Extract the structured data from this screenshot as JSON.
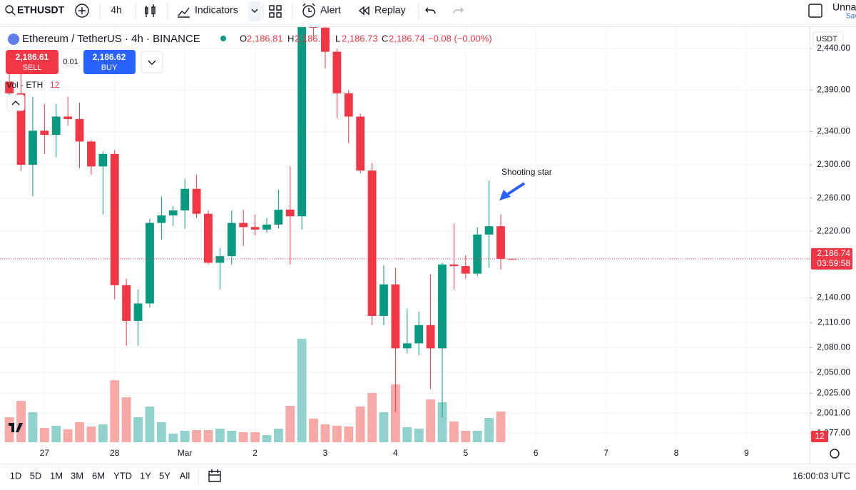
{
  "toolbar": {
    "symbol": "ETHUSDT",
    "interval": "4h",
    "indicators": "Indicators",
    "alert": "Alert",
    "replay": "Replay",
    "layout_name": "Unnam",
    "save": "Sav"
  },
  "legend": {
    "title": "Ethereum / TetherUS · 4h · BINANCE",
    "o_label": "O",
    "o": "2,186.81",
    "h_label": "H",
    "h": "2,186.81",
    "l_label": "L",
    "l": "2,186.73",
    "c_label": "C",
    "c": "2,186.74",
    "change": "−0.08 (−0.00%)"
  },
  "trade": {
    "sell_price": "2,186.61",
    "sell": "SELL",
    "spread": "0.01",
    "buy_price": "2,186.62",
    "buy": "BUY"
  },
  "volume_legend": {
    "label": "Vol · ETH",
    "value": "12"
  },
  "price_scale": {
    "currency": "USDT",
    "last_price": "2,186.74",
    "countdown": "03:59:58",
    "volume_badge": "12"
  },
  "timeframes": [
    "1D",
    "5D",
    "1M",
    "3M",
    "6M",
    "YTD",
    "1Y",
    "5Y",
    "All"
  ],
  "clock": "16:00:03 UTC",
  "chart_data": {
    "type": "candlestick",
    "annotation": "Shooting star",
    "open": [
      2400,
      2386,
      2300,
      2341,
      2336,
      2358,
      2355,
      2328,
      2298,
      2313,
      2155,
      2112,
      2133,
      2230,
      2239,
      2245,
      2271,
      2241,
      2182,
      2190,
      2230,
      2225,
      2222,
      2228,
      2246,
      2238,
      2470,
      2465,
      2436,
      2386,
      2358,
      2293,
      2118,
      2156,
      2079,
      2085,
      2107,
      2079,
      2180,
      2178,
      2169,
      2216,
      2226,
      2186.81
    ],
    "high": [
      2415,
      2412,
      2382,
      2373,
      2373,
      2382,
      2375,
      2330,
      2316,
      2318,
      2163,
      2150,
      2235,
      2262,
      2250,
      2283,
      2288,
      2245,
      2200,
      2245,
      2246,
      2240,
      2236,
      2270,
      2298,
      2490,
      2495,
      2480,
      2440,
      2390,
      2362,
      2302,
      2179,
      2176,
      2127,
      2123,
      2168,
      2182,
      2229,
      2191,
      2225,
      2281,
      2240,
      2186.81
    ],
    "low": [
      2380,
      2292,
      2262,
      2313,
      2309,
      2347,
      2296,
      2288,
      2240,
      2138,
      2082,
      2082,
      2128,
      2210,
      2226,
      2223,
      2236,
      2180,
      2150,
      2180,
      2202,
      2215,
      2218,
      2223,
      2180,
      2222,
      2450,
      2416,
      2356,
      2326,
      2290,
      2107,
      2107,
      2002,
      2073,
      2071,
      2030,
      1996,
      2150,
      2163,
      2166,
      2176,
      2174,
      2186.73
    ],
    "close": [
      2386,
      2300,
      2341,
      2336,
      2358,
      2355,
      2328,
      2298,
      2313,
      2155,
      2112,
      2133,
      2230,
      2239,
      2245,
      2271,
      2241,
      2182,
      2190,
      2230,
      2225,
      2222,
      2228,
      2246,
      2238,
      2470,
      2465,
      2436,
      2386,
      2358,
      2293,
      2118,
      2156,
      2079,
      2085,
      2107,
      2079,
      2180,
      2178,
      2169,
      2216,
      2226,
      2186.81,
      2186.74
    ],
    "volume": [
      35000,
      58000,
      42000,
      20000,
      23000,
      18000,
      28000,
      22000,
      25000,
      87000,
      63000,
      35000,
      50000,
      28000,
      12000,
      16000,
      17000,
      17000,
      19000,
      16000,
      14000,
      14000,
      10000,
      19000,
      51000,
      145000,
      33000,
      25000,
      23000,
      22000,
      50000,
      69000,
      42000,
      81000,
      21000,
      19000,
      60000,
      56000,
      29000,
      16000,
      16000,
      34000,
      43000,
      12
    ],
    "up_color": "#089981",
    "down_color": "#f23645",
    "volume_up_color": "#92d2cc",
    "volume_down_color": "#f7a9a7",
    "xlim": [
      -0.8,
      68.4
    ],
    "xticks": [
      {
        "value": 3,
        "label": "27"
      },
      {
        "value": 9,
        "label": "28"
      },
      {
        "value": 15,
        "label": "Mar"
      },
      {
        "value": 21,
        "label": "2"
      },
      {
        "value": 27,
        "label": "3"
      },
      {
        "value": 33,
        "label": "4"
      },
      {
        "value": 39,
        "label": "5"
      },
      {
        "value": 45,
        "label": "6"
      },
      {
        "value": 51,
        "label": "7"
      },
      {
        "value": 57,
        "label": "8"
      },
      {
        "value": 63,
        "label": "9"
      }
    ],
    "ylim": [
      1966,
      2464
    ],
    "yticks": [
      {
        "value": 2440,
        "label": "2,440.00"
      },
      {
        "value": 2390,
        "label": "2,390.00"
      },
      {
        "value": 2340,
        "label": "2,340.00"
      },
      {
        "value": 2300,
        "label": "2,300.00"
      },
      {
        "value": 2260,
        "label": "2,260.00"
      },
      {
        "value": 2220,
        "label": "2,220.00"
      },
      {
        "value": 2140,
        "label": "2,140.00"
      },
      {
        "value": 2110,
        "label": "2,110.00"
      },
      {
        "value": 2080,
        "label": "2,080.00"
      },
      {
        "value": 2050,
        "label": "2,050.00"
      },
      {
        "value": 2025,
        "label": "2,025.00"
      },
      {
        "value": 2001,
        "label": "2,001.00"
      },
      {
        "value": 1977,
        "label": "1,977.00"
      }
    ],
    "volume_lim": [
      0,
      580000
    ],
    "grid": true
  }
}
